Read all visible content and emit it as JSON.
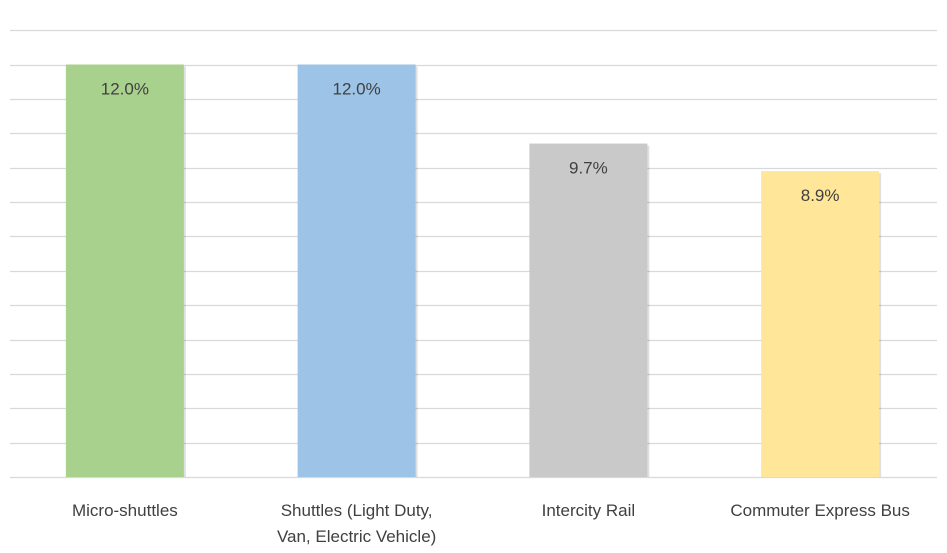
{
  "chart_data": {
    "type": "bar",
    "categories": [
      [
        "Micro-shuttles"
      ],
      [
        "Shuttles (Light Duty,",
        "Van, Electric Vehicle)"
      ],
      [
        "Intercity Rail"
      ],
      [
        "Commuter Express Bus"
      ]
    ],
    "values": [
      12.0,
      12.0,
      9.7,
      8.9
    ],
    "data_labels": [
      "12.0%",
      "12.0%",
      "9.7%",
      "8.9%"
    ],
    "colors": [
      "#a9d18e",
      "#9dc3e6",
      "#c9c9c9",
      "#ffe699"
    ],
    "title": "",
    "xlabel": "",
    "ylabel": "",
    "ylim": [
      0,
      13.6
    ],
    "y_axis_visible": false,
    "grid": true,
    "legend": "none"
  }
}
